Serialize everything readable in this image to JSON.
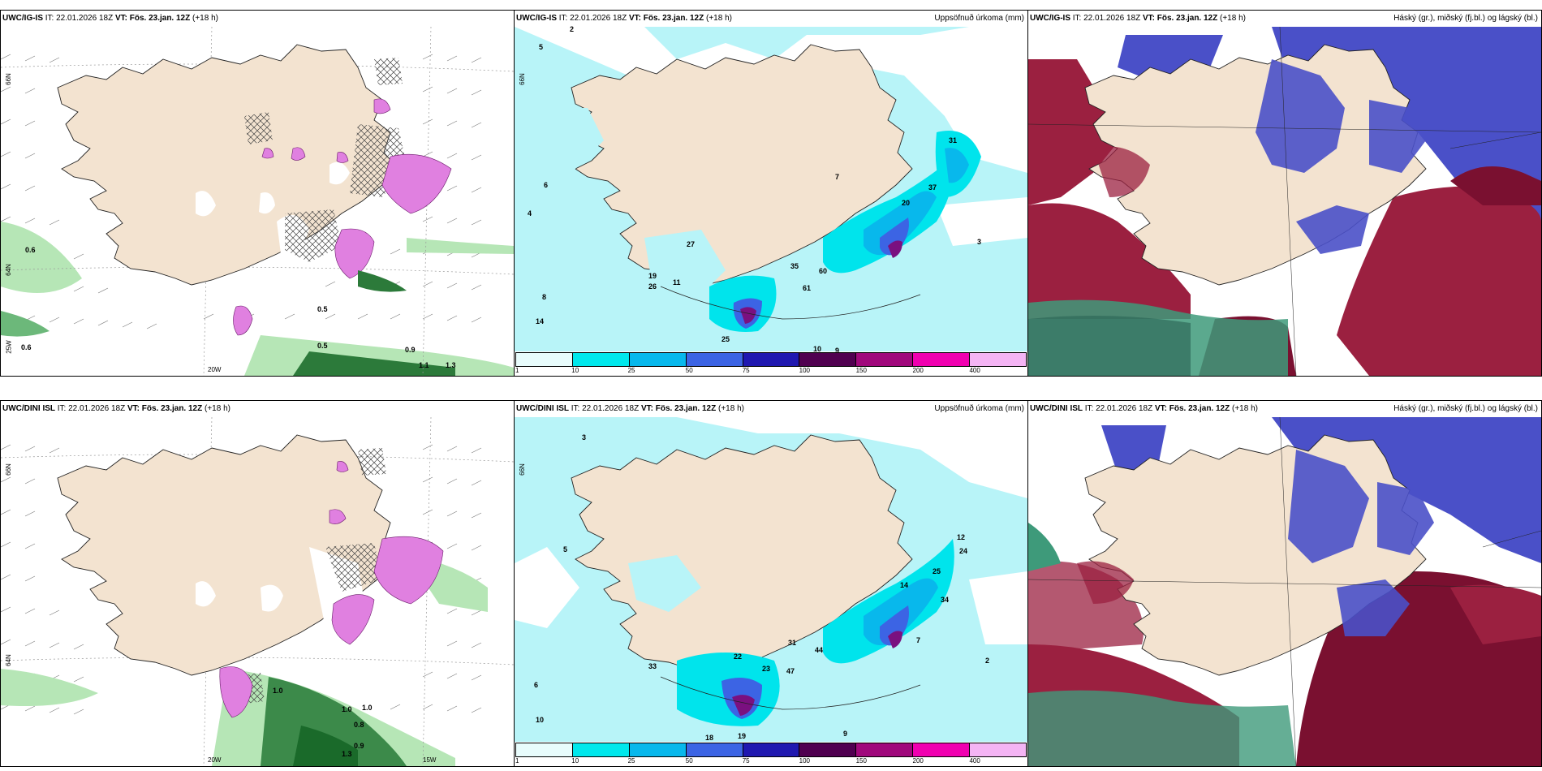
{
  "panels": {
    "p1": {
      "model": "UWC/IG-IS",
      "it_label": "IT:",
      "it": "22.01.2026 18Z",
      "vt_label": "VT:",
      "vt": "Fös. 23.jan. 12Z",
      "lead": "(+18 h)",
      "right": ""
    },
    "p2": {
      "model": "UWC/IG-IS",
      "it_label": "IT:",
      "it": "22.01.2026 18Z",
      "vt_label": "VT:",
      "vt": "Fös. 23.jan. 12Z",
      "lead": "(+18 h)",
      "right": "Uppsöfnuð úrkoma (mm)"
    },
    "p3": {
      "model": "UWC/IG-IS",
      "it_label": "IT:",
      "it": "22.01.2026 18Z",
      "vt_label": "VT:",
      "vt": "Fös. 23.jan. 12Z",
      "lead": "(+18 h)",
      "right": "Háský (gr.), miðský (fj.bl.) og lágský (bl.)"
    },
    "p4": {
      "model": "UWC/DINI ISL",
      "it_label": "IT:",
      "it": "22.01.2026 18Z",
      "vt_label": "VT:",
      "vt": "Fös. 23.jan. 12Z",
      "lead": "(+18 h)",
      "right": ""
    },
    "p5": {
      "model": "UWC/DINI ISL",
      "it_label": "IT:",
      "it": "22.01.2026 18Z",
      "vt_label": "VT:",
      "vt": "Fös. 23.jan. 12Z",
      "lead": "(+18 h)",
      "right": "Uppsöfnuð úrkoma (mm)"
    },
    "p6": {
      "model": "UWC/DINI ISL",
      "it_label": "IT:",
      "it": "22.01.2026 18Z",
      "vt_label": "VT:",
      "vt": "Fös. 23.jan. 12Z",
      "lead": "(+18 h)",
      "right": "Háský (gr.), miðský (fj.bl.) og lágský (bl.)"
    }
  },
  "legend": {
    "ticks": [
      "1",
      "10",
      "25",
      "50",
      "75",
      "100",
      "150",
      "200",
      "400"
    ],
    "colors": [
      "#e8fcfc",
      "#00e8ec",
      "#08b8ec",
      "#3c64e4",
      "#2018b0",
      "#500050",
      "#a0087c",
      "#f000b0",
      "#f4b4f4"
    ]
  },
  "grid_labels": {
    "lat66": "66N",
    "lat64": "64N",
    "lon20": "20W",
    "lon25": "25W",
    "lon15": "15W"
  },
  "colors": {
    "land": "#f3e3d0",
    "precip_light": "#b8f4f8",
    "precip_med": "#00e4ec",
    "precip_dark": "#08b8ec",
    "precip_blue": "#3c64e4",
    "precip_purple": "#7a1080",
    "high_cloud": "#3e9a7a",
    "mid_cloud": "#9b2040",
    "low_cloud": "#4a50c8",
    "green_light": "#b6e6b6",
    "green_dark": "#1a6a2a",
    "pink": "#e080e0"
  },
  "p1_labels": {
    "a": "0.6",
    "b": "0.5",
    "c": "0.5",
    "d": "0.9",
    "e": "0.6",
    "f": "1.1",
    "g": "1.3"
  },
  "p4_labels": {
    "a": "1.0",
    "b": "1.0",
    "c": "0.9",
    "d": "1.0",
    "e": "0.8",
    "f": "1.3"
  },
  "p2_labels": {
    "a": "5",
    "b": "2",
    "c": "6",
    "d": "4",
    "e": "8",
    "f": "14",
    "g": "19",
    "h": "26",
    "i": "27",
    "j": "35",
    "k": "61",
    "l": "60",
    "m": "20",
    "n": "37",
    "o": "31",
    "p": "3",
    "q": "25",
    "r": "10",
    "s": "9",
    "t": "7",
    "u": "11"
  },
  "p5_labels": {
    "a": "3",
    "b": "5",
    "c": "6",
    "d": "10",
    "e": "33",
    "f": "22",
    "g": "23",
    "h": "47",
    "i": "31",
    "j": "44",
    "k": "14",
    "l": "25",
    "m": "34",
    "n": "12",
    "o": "24",
    "p": "18",
    "q": "19",
    "r": "9",
    "s": "7",
    "t": "2"
  }
}
